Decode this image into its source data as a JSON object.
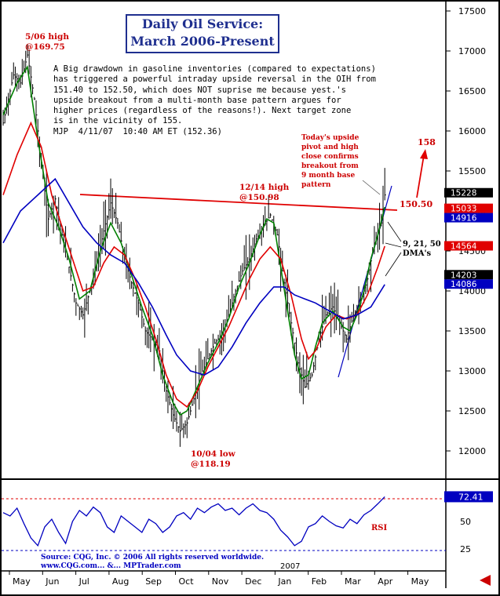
{
  "title": {
    "line1": "Daily Oil Service:",
    "line2": "March 2006-Present"
  },
  "commentary": "A Big drawdown in gasoline inventories (compared to expectations)\nhas triggered a powerful intraday upside reversal in the OIH from\n151.40 to 152.50, which does NOT suprise me because yest.'s\nupside breakout from a multi-month base pattern argues for\nhigher prices (regardless of the reasons!). Next target zone\nis in the vicinity of 155.\nMJP  4/11/07  10:40 AM ET (152.36)",
  "annotations": {
    "high_506": [
      "5/06 high",
      "@169.75"
    ],
    "high_1214": [
      "12/14 high",
      "@150.98"
    ],
    "low_1004": [
      "10/04 low",
      "@118.19"
    ],
    "today": [
      "Today's upside",
      "pivot and high",
      "close confirms",
      "breakout from",
      "9 month base",
      "pattern"
    ],
    "target": "158",
    "resistance": "150.50",
    "dma_label": [
      "9, 21, 50",
      "DMA's"
    ],
    "rsi": "RSI",
    "source": [
      "Source: CQG, Inc. © 2006 All rights reserved worldwide.",
      "www.CQG.com... &... MPTrader.com"
    ],
    "year_2007": "2007"
  },
  "colors": {
    "price": "#000000",
    "dma9": "#008000",
    "dma21": "#e00000",
    "dma50": "#0000c0",
    "annotation_red": "#cc0000",
    "title_blue": "#1f2f8f",
    "tag_black": "#000000",
    "tag_red": "#e00000",
    "tag_blue": "#0000c0",
    "rsi_line": "#0000c0"
  },
  "chart_data": [
    {
      "type": "line",
      "ylim": [
        11600,
        17700
      ],
      "grid": false,
      "yticks": [
        12000,
        12500,
        13000,
        13500,
        14000,
        14500,
        15000,
        15500,
        16000,
        16500,
        17000,
        17500
      ],
      "ytick_labels": [
        "12000",
        "12500",
        "13000",
        "13500",
        "14000",
        "14500",
        "15000",
        "15500",
        "16000",
        "16500",
        "17000",
        "17500"
      ],
      "months": [
        "May",
        "Jun",
        "Jul",
        "Aug",
        "Sep",
        "Oct",
        "Nov",
        "Dec",
        "Jan",
        "Feb",
        "Mar",
        "Apr",
        "May"
      ],
      "price_tags": [
        {
          "label": "15228",
          "value": 15228,
          "style": "black"
        },
        {
          "label": "15033",
          "value": 15033,
          "style": "red"
        },
        {
          "label": "14916",
          "value": 14916,
          "style": "blue"
        },
        {
          "label": "14564",
          "value": 14564,
          "style": "red"
        },
        {
          "label": "14203",
          "value": 14203,
          "style": "black"
        },
        {
          "label": "14086",
          "value": 14086,
          "style": "blue"
        }
      ],
      "price_path": [
        [
          0,
          16100
        ],
        [
          3,
          16700
        ],
        [
          5,
          16600
        ],
        [
          7,
          16950
        ],
        [
          9,
          16400
        ],
        [
          11,
          15600
        ],
        [
          13,
          14900
        ],
        [
          15,
          15150
        ],
        [
          17,
          14700
        ],
        [
          19,
          14300
        ],
        [
          21,
          13850
        ],
        [
          23,
          13700
        ],
        [
          25,
          14000
        ],
        [
          27,
          14350
        ],
        [
          29,
          14750
        ],
        [
          31,
          15100
        ],
        [
          33,
          14850
        ],
        [
          35,
          14400
        ],
        [
          37,
          14100
        ],
        [
          39,
          13850
        ],
        [
          41,
          13500
        ],
        [
          43,
          13400
        ],
        [
          45,
          13250
        ],
        [
          47,
          12750
        ],
        [
          49,
          12450
        ],
        [
          51,
          12250
        ],
        [
          53,
          12350
        ],
        [
          55,
          12650
        ],
        [
          57,
          12950
        ],
        [
          59,
          13150
        ],
        [
          61,
          13350
        ],
        [
          63,
          13450
        ],
        [
          65,
          13700
        ],
        [
          67,
          14000
        ],
        [
          69,
          14250
        ],
        [
          71,
          14400
        ],
        [
          73,
          14650
        ],
        [
          75,
          14800
        ],
        [
          77,
          14950
        ],
        [
          79,
          14700
        ],
        [
          81,
          14100
        ],
        [
          83,
          13600
        ],
        [
          85,
          13100
        ],
        [
          87,
          12800
        ],
        [
          89,
          12950
        ],
        [
          91,
          13400
        ],
        [
          93,
          13700
        ],
        [
          95,
          13800
        ],
        [
          97,
          13600
        ],
        [
          99,
          13400
        ],
        [
          101,
          13700
        ],
        [
          103,
          13850
        ],
        [
          105,
          14150
        ],
        [
          107,
          14600
        ],
        [
          109,
          14850
        ],
        [
          110,
          15200
        ]
      ],
      "series": [
        {
          "name": "9 DMA",
          "values": [
            [
              0,
              16200
            ],
            [
              4,
              16600
            ],
            [
              7,
              16800
            ],
            [
              10,
              15900
            ],
            [
              13,
              15100
            ],
            [
              16,
              14800
            ],
            [
              19,
              14400
            ],
            [
              22,
              13900
            ],
            [
              25,
              14000
            ],
            [
              28,
              14500
            ],
            [
              31,
              14850
            ],
            [
              34,
              14600
            ],
            [
              37,
              14200
            ],
            [
              40,
              13800
            ],
            [
              43,
              13450
            ],
            [
              46,
              12950
            ],
            [
              49,
              12600
            ],
            [
              51,
              12450
            ],
            [
              53,
              12500
            ],
            [
              56,
              12800
            ],
            [
              59,
              13100
            ],
            [
              62,
              13350
            ],
            [
              65,
              13650
            ],
            [
              68,
              14050
            ],
            [
              71,
              14350
            ],
            [
              74,
              14700
            ],
            [
              76,
              14900
            ],
            [
              78,
              14850
            ],
            [
              80,
              14300
            ],
            [
              82,
              13750
            ],
            [
              84,
              13200
            ],
            [
              86,
              12900
            ],
            [
              88,
              12950
            ],
            [
              90,
              13300
            ],
            [
              92,
              13600
            ],
            [
              95,
              13750
            ],
            [
              98,
              13550
            ],
            [
              100,
              13500
            ],
            [
              102,
              13700
            ],
            [
              104,
              14000
            ],
            [
              106,
              14400
            ],
            [
              108,
              14700
            ],
            [
              110,
              15050
            ]
          ]
        },
        {
          "name": "21 DMA",
          "values": [
            [
              0,
              15200
            ],
            [
              4,
              15700
            ],
            [
              8,
              16100
            ],
            [
              11,
              15800
            ],
            [
              14,
              15200
            ],
            [
              17,
              14800
            ],
            [
              20,
              14400
            ],
            [
              23,
              14000
            ],
            [
              26,
              14050
            ],
            [
              29,
              14350
            ],
            [
              32,
              14550
            ],
            [
              35,
              14450
            ],
            [
              38,
              14150
            ],
            [
              41,
              13800
            ],
            [
              44,
              13400
            ],
            [
              47,
              12950
            ],
            [
              50,
              12650
            ],
            [
              53,
              12550
            ],
            [
              56,
              12750
            ],
            [
              59,
              13050
            ],
            [
              62,
              13300
            ],
            [
              65,
              13550
            ],
            [
              68,
              13850
            ],
            [
              71,
              14150
            ],
            [
              74,
              14400
            ],
            [
              77,
              14550
            ],
            [
              80,
              14400
            ],
            [
              83,
              13950
            ],
            [
              86,
              13400
            ],
            [
              88,
              13150
            ],
            [
              90,
              13250
            ],
            [
              93,
              13550
            ],
            [
              96,
              13700
            ],
            [
              99,
              13650
            ],
            [
              102,
              13700
            ],
            [
              105,
              13950
            ],
            [
              108,
              14300
            ],
            [
              110,
              14560
            ]
          ]
        },
        {
          "name": "50 DMA",
          "values": [
            [
              0,
              14600
            ],
            [
              5,
              15000
            ],
            [
              10,
              15200
            ],
            [
              15,
              15400
            ],
            [
              19,
              15100
            ],
            [
              23,
              14800
            ],
            [
              27,
              14600
            ],
            [
              31,
              14450
            ],
            [
              35,
              14350
            ],
            [
              39,
              14100
            ],
            [
              43,
              13800
            ],
            [
              47,
              13450
            ],
            [
              50,
              13200
            ],
            [
              54,
              13000
            ],
            [
              58,
              12950
            ],
            [
              62,
              13050
            ],
            [
              66,
              13300
            ],
            [
              70,
              13600
            ],
            [
              74,
              13850
            ],
            [
              78,
              14050
            ],
            [
              81,
              14050
            ],
            [
              84,
              13950
            ],
            [
              87,
              13900
            ],
            [
              90,
              13850
            ],
            [
              94,
              13750
            ],
            [
              98,
              13650
            ],
            [
              102,
              13700
            ],
            [
              106,
              13800
            ],
            [
              110,
              14080
            ]
          ]
        }
      ]
    },
    {
      "type": "line",
      "name": "RSI",
      "ylim": [
        18,
        80
      ],
      "yticks": [
        25,
        50
      ],
      "ytick_labels": [
        "25",
        "50"
      ],
      "last_value_label": "72.41",
      "values": [
        [
          0,
          58
        ],
        [
          2,
          55
        ],
        [
          4,
          62
        ],
        [
          6,
          48
        ],
        [
          8,
          35
        ],
        [
          10,
          28
        ],
        [
          12,
          45
        ],
        [
          14,
          52
        ],
        [
          16,
          40
        ],
        [
          18,
          30
        ],
        [
          20,
          50
        ],
        [
          22,
          60
        ],
        [
          24,
          55
        ],
        [
          26,
          63
        ],
        [
          28,
          58
        ],
        [
          30,
          45
        ],
        [
          32,
          40
        ],
        [
          34,
          55
        ],
        [
          36,
          50
        ],
        [
          38,
          45
        ],
        [
          40,
          40
        ],
        [
          42,
          52
        ],
        [
          44,
          48
        ],
        [
          46,
          40
        ],
        [
          48,
          45
        ],
        [
          50,
          55
        ],
        [
          52,
          58
        ],
        [
          54,
          52
        ],
        [
          56,
          62
        ],
        [
          58,
          58
        ],
        [
          60,
          63
        ],
        [
          62,
          66
        ],
        [
          64,
          60
        ],
        [
          66,
          62
        ],
        [
          68,
          56
        ],
        [
          70,
          62
        ],
        [
          72,
          66
        ],
        [
          74,
          60
        ],
        [
          76,
          58
        ],
        [
          78,
          52
        ],
        [
          80,
          42
        ],
        [
          82,
          36
        ],
        [
          84,
          28
        ],
        [
          86,
          32
        ],
        [
          88,
          45
        ],
        [
          90,
          48
        ],
        [
          92,
          55
        ],
        [
          94,
          50
        ],
        [
          96,
          46
        ],
        [
          98,
          44
        ],
        [
          100,
          52
        ],
        [
          102,
          48
        ],
        [
          104,
          56
        ],
        [
          106,
          60
        ],
        [
          108,
          66
        ],
        [
          110,
          72.41
        ]
      ]
    }
  ]
}
